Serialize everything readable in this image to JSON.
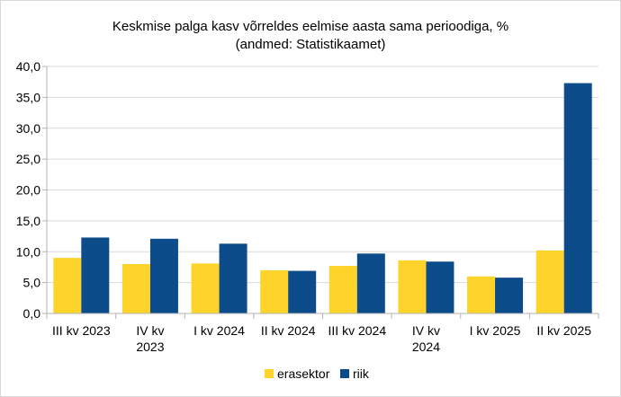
{
  "chart_data": {
    "type": "bar",
    "title": "Keskmise palga kasv võrreldes eelmise aasta sama perioodiga, %",
    "subtitle": "(andmed: Statistikaamet)",
    "categories": [
      [
        "III kv 2023"
      ],
      [
        "IV kv",
        "2023"
      ],
      [
        "I kv 2024"
      ],
      [
        "II kv 2024"
      ],
      [
        "III kv 2024"
      ],
      [
        "IV kv",
        "2024"
      ],
      [
        "I kv 2025"
      ],
      [
        "II kv 2025"
      ]
    ],
    "series": [
      {
        "name": "erasektor",
        "color": "#FFD42A",
        "values": [
          9.0,
          8.0,
          8.1,
          7.0,
          7.7,
          8.6,
          6.0,
          10.2
        ]
      },
      {
        "name": "riik",
        "color": "#0D4C8B",
        "values": [
          12.3,
          12.1,
          11.3,
          6.9,
          9.7,
          8.4,
          5.8,
          37.3
        ]
      }
    ],
    "yticks": [
      "0,0",
      "5,0",
      "10,0",
      "15,0",
      "20,0",
      "25,0",
      "30,0",
      "35,0",
      "40,0"
    ],
    "ylim": [
      0,
      40
    ],
    "grid": true,
    "legend_position": "bottom"
  }
}
